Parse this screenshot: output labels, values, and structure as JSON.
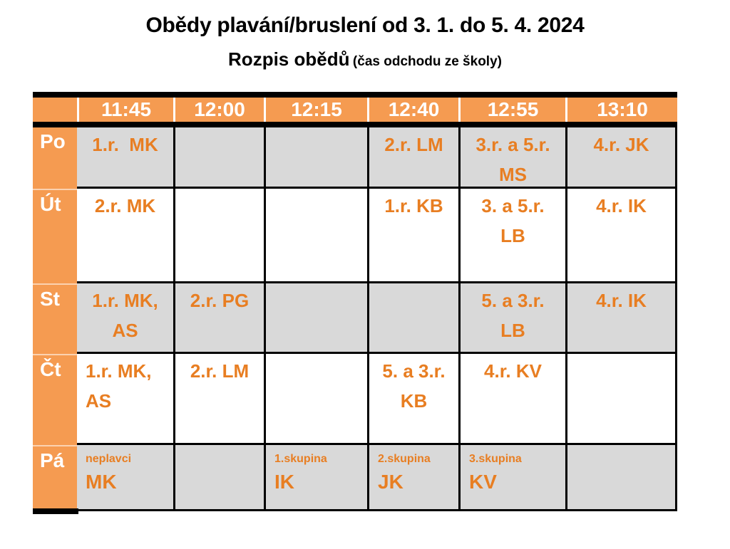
{
  "page": {
    "title": "Obědy plavání/bruslení od 3. 1. do 5. 4. 2024",
    "subtitle": "Rozpis obědů",
    "subtitle_note": "(čas odchodu ze školy)"
  },
  "colors": {
    "header_bg": "#F59B51",
    "label_bg": "#F59B51",
    "header_text": "#FFFFFF",
    "cell_text": "#E87E22",
    "shaded_row_bg": "#D9D9D9",
    "plain_row_bg": "#FFFFFF",
    "border": "#000000"
  },
  "table": {
    "time_headers": [
      "11:45",
      "12:00",
      "12:15",
      "12:40",
      "12:55",
      "13:10"
    ],
    "rows": [
      {
        "day": "Po",
        "cells": [
          "1.r.  MK",
          "",
          "",
          "2.r. LM",
          "3.r. a 5.r.\nMS",
          "4.r. JK"
        ]
      },
      {
        "day": "Út",
        "cells": [
          "2.r. MK",
          "",
          "",
          "1.r. KB",
          "3. a 5.r.\nLB",
          "4.r. IK"
        ]
      },
      {
        "day": "St",
        "cells": [
          "1.r. MK,\nAS",
          "2.r. PG",
          "",
          "",
          "5. a 3.r.\nLB",
          "4.r. IK"
        ]
      },
      {
        "day": "Čt",
        "cells": [
          {
            "text": "1.r. MK,\nAS",
            "align": "left"
          },
          "2.r. LM",
          "",
          "5. a 3.r.\nKB",
          "4.r. KV",
          ""
        ]
      },
      {
        "day": "Pá",
        "cells": [
          {
            "small": "neplavci",
            "text": "MK"
          },
          "",
          {
            "small": "1.skupina",
            "text": "IK"
          },
          {
            "small": "2.skupina",
            "text": "JK"
          },
          {
            "small": "3.skupina",
            "text": "KV"
          },
          ""
        ]
      }
    ]
  }
}
